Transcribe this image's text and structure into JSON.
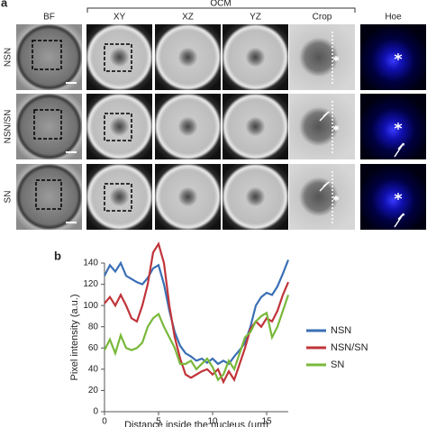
{
  "panel_a": {
    "label": "a",
    "group_label": "OCM",
    "columns": [
      "BF",
      "XY",
      "XZ",
      "YZ",
      "Crop",
      "Hoe"
    ],
    "rows": [
      "NSN",
      "NSN/SN",
      "SN"
    ]
  },
  "panel_b_label": "b",
  "chart_data": {
    "type": "line",
    "xlabel": "Distance inside the nucleus (μm)",
    "ylabel": "Pixel intensity (a.u.)",
    "x": [
      0,
      0.5,
      1,
      1.5,
      2,
      2.5,
      3,
      3.5,
      4,
      4.5,
      5,
      5.5,
      6,
      6.5,
      7,
      7.5,
      8,
      8.5,
      9,
      9.5,
      10,
      10.5,
      11,
      11.5,
      12,
      12.5,
      13,
      13.5,
      14,
      14.5,
      15,
      15.5,
      16,
      16.5,
      17
    ],
    "series": [
      {
        "name": "NSN",
        "color": "#3a6fb5",
        "values": [
          128,
          138,
          132,
          140,
          128,
          125,
          122,
          120,
          126,
          135,
          138,
          120,
          95,
          75,
          62,
          55,
          52,
          48,
          50,
          46,
          50,
          45,
          48,
          45,
          52,
          58,
          65,
          80,
          100,
          108,
          112,
          110,
          118,
          130,
          143
        ]
      },
      {
        "name": "NSN/SN",
        "color": "#c0343a",
        "values": [
          102,
          108,
          100,
          110,
          100,
          88,
          85,
          100,
          120,
          150,
          158,
          140,
          100,
          70,
          50,
          35,
          32,
          35,
          38,
          40,
          35,
          40,
          28,
          38,
          30,
          45,
          60,
          78,
          85,
          80,
          88,
          85,
          95,
          110,
          122
        ]
      },
      {
        "name": "SN",
        "color": "#79b83a",
        "values": [
          58,
          68,
          55,
          72,
          60,
          58,
          60,
          65,
          80,
          88,
          92,
          80,
          70,
          60,
          45,
          45,
          48,
          40,
          45,
          50,
          42,
          30,
          35,
          48,
          40,
          55,
          70,
          75,
          85,
          90,
          93,
          70,
          80,
          95,
          110
        ]
      }
    ],
    "xlim": [
      0,
      17
    ],
    "xticks": [
      0,
      5,
      10,
      15
    ],
    "ylim": [
      0,
      140
    ],
    "yticks": [
      0,
      20,
      40,
      60,
      80,
      100,
      120,
      140
    ]
  }
}
